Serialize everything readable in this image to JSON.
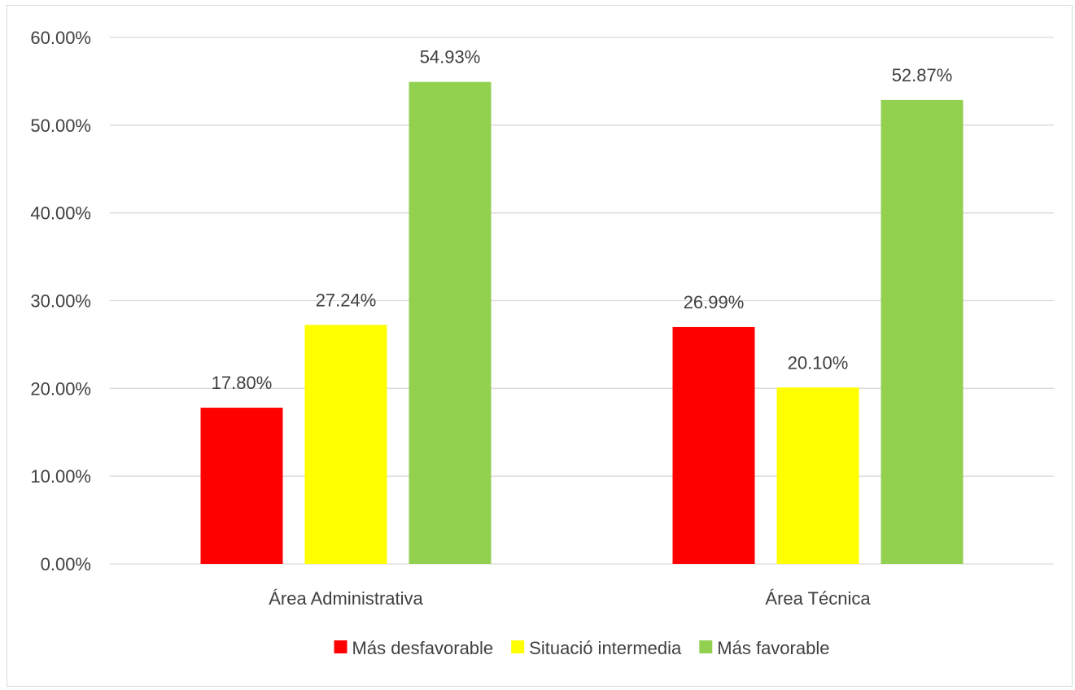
{
  "chart_data": {
    "type": "bar",
    "categories": [
      "Área Administrativa",
      "Área Técnica"
    ],
    "series": [
      {
        "name": "Más desfavorable",
        "values": [
          17.8,
          26.99
        ],
        "labels": [
          "17.80%",
          "26.99%"
        ],
        "color": "#ff0000"
      },
      {
        "name": "Situació intermedia",
        "values": [
          27.24,
          20.1
        ],
        "labels": [
          "27.24%",
          "20.10%"
        ],
        "color": "#ffff00"
      },
      {
        "name": "Más favorable",
        "values": [
          54.93,
          52.87
        ],
        "labels": [
          "54.93%",
          "52.87%"
        ],
        "color": "#92d050"
      }
    ],
    "ylim": [
      0,
      60
    ],
    "yticks": [
      0,
      10,
      20,
      30,
      40,
      50,
      60
    ],
    "ytick_labels": [
      "0.00%",
      "10.00%",
      "20.00%",
      "30.00%",
      "40.00%",
      "50.00%",
      "60.00%"
    ],
    "grid": true,
    "legend_position": "bottom",
    "gridline_color": "#d9d9d9",
    "text_color": "#404040"
  }
}
